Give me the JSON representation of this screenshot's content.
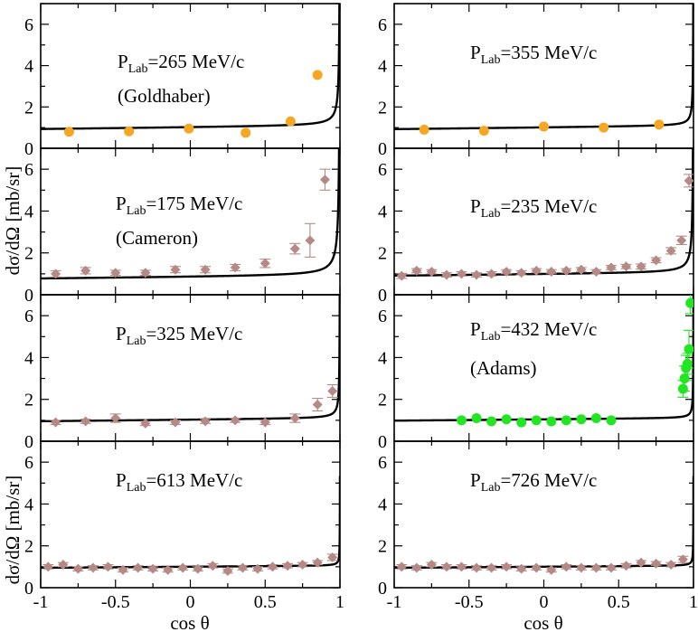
{
  "figure": {
    "ylabel": "dσ/dΩ [mb/sr]",
    "xlabel": "cos θ",
    "colors": {
      "orange": "#f5a623",
      "mauve": "#b58a86",
      "green": "#22e622",
      "curve": "#000000"
    }
  },
  "chart_data": [
    {
      "type": "scatter",
      "panel": "top-left",
      "annotation_main": "P",
      "annotation_sub": "Lab",
      "annotation_rest": "=265 MeV/c",
      "annotation_ref": "(Goldhaber)",
      "marker": "circle",
      "color": "orange",
      "xlim": [
        -1,
        1
      ],
      "ylim": [
        0,
        7
      ],
      "x": [
        -0.81,
        -0.41,
        -0.01,
        0.37,
        0.67,
        0.85
      ],
      "y": [
        0.8,
        0.82,
        0.95,
        0.75,
        1.3,
        3.55
      ],
      "err": [
        0,
        0,
        0,
        0,
        0,
        0
      ],
      "curve": {
        "a": 1.0,
        "b": 0.08,
        "c": 0.025
      }
    },
    {
      "type": "scatter",
      "panel": "top-right",
      "annotation_main": "P",
      "annotation_sub": "Lab",
      "annotation_rest": "=355 MeV/c",
      "annotation_ref": "",
      "marker": "circle",
      "color": "orange",
      "xlim": [
        -1,
        1
      ],
      "ylim": [
        0,
        7
      ],
      "x": [
        -0.8,
        -0.4,
        0.0,
        0.4,
        0.77
      ],
      "y": [
        0.9,
        0.85,
        1.05,
        1.0,
        1.15
      ],
      "err": [
        0,
        0,
        0,
        0,
        0
      ],
      "curve": {
        "a": 1.0,
        "b": 0.08,
        "c": 0.012
      }
    },
    {
      "type": "scatter",
      "panel": "middle1-left",
      "annotation_main": "P",
      "annotation_sub": "Lab",
      "annotation_rest": "=175 MeV/c",
      "annotation_ref": "(Cameron)",
      "marker": "diamond",
      "color": "mauve",
      "xlim": [
        -1,
        1
      ],
      "ylim": [
        0,
        7
      ],
      "x": [
        -0.9,
        -0.7,
        -0.5,
        -0.3,
        -0.1,
        0.1,
        0.3,
        0.5,
        0.7,
        0.8,
        0.9
      ],
      "y": [
        1.0,
        1.15,
        1.05,
        1.05,
        1.2,
        1.2,
        1.3,
        1.5,
        2.2,
        2.6,
        5.5
      ],
      "err": [
        0.15,
        0.15,
        0.12,
        0.12,
        0.15,
        0.15,
        0.15,
        0.2,
        0.25,
        0.8,
        0.5
      ],
      "curve": {
        "a": 0.83,
        "b": 0.07,
        "c": 0.04
      }
    },
    {
      "type": "scatter",
      "panel": "middle1-right",
      "annotation_main": "P",
      "annotation_sub": "Lab",
      "annotation_rest": "=235 MeV/c",
      "annotation_ref": "",
      "marker": "diamond",
      "color": "mauve",
      "xlim": [
        -1,
        1
      ],
      "ylim": [
        0,
        7
      ],
      "x": [
        -0.95,
        -0.85,
        -0.75,
        -0.65,
        -0.55,
        -0.45,
        -0.35,
        -0.25,
        -0.15,
        -0.05,
        0.05,
        0.15,
        0.25,
        0.35,
        0.45,
        0.55,
        0.65,
        0.75,
        0.85,
        0.92,
        0.97
      ],
      "y": [
        0.9,
        1.15,
        1.1,
        0.95,
        1.0,
        0.95,
        1.0,
        1.1,
        1.05,
        1.15,
        1.1,
        1.15,
        1.2,
        1.1,
        1.3,
        1.35,
        1.35,
        1.65,
        2.1,
        2.6,
        5.45
      ],
      "err": [
        0.12,
        0.1,
        0.1,
        0.1,
        0.1,
        0.1,
        0.1,
        0.1,
        0.1,
        0.1,
        0.1,
        0.1,
        0.1,
        0.1,
        0.1,
        0.1,
        0.12,
        0.12,
        0.15,
        0.2,
        0.3
      ],
      "curve": {
        "a": 0.97,
        "b": 0.07,
        "c": 0.025
      }
    },
    {
      "type": "scatter",
      "panel": "middle2-left",
      "annotation_main": "P",
      "annotation_sub": "Lab",
      "annotation_rest": "=325 MeV/c",
      "annotation_ref": "",
      "marker": "diamond",
      "color": "mauve",
      "xlim": [
        -1,
        1
      ],
      "ylim": [
        0,
        7
      ],
      "x": [
        -0.9,
        -0.7,
        -0.5,
        -0.3,
        -0.1,
        0.1,
        0.3,
        0.5,
        0.7,
        0.85,
        0.95
      ],
      "y": [
        0.9,
        0.95,
        1.1,
        0.85,
        0.9,
        0.95,
        1.0,
        0.9,
        1.1,
        1.75,
        2.4
      ],
      "err": [
        0.1,
        0.1,
        0.2,
        0.1,
        0.1,
        0.1,
        0.1,
        0.1,
        0.2,
        0.3,
        0.3
      ],
      "curve": {
        "a": 1.02,
        "b": 0.07,
        "c": 0.012
      }
    },
    {
      "type": "scatter",
      "panel": "middle2-right",
      "annotation_main": "P",
      "annotation_sub": "Lab",
      "annotation_rest": "=432 MeV/c",
      "annotation_ref": "(Adams)",
      "marker": "circle",
      "color": "green",
      "xlim": [
        -1,
        1
      ],
      "ylim": [
        0,
        7
      ],
      "x": [
        -0.55,
        -0.45,
        -0.35,
        -0.25,
        -0.15,
        -0.05,
        0.05,
        0.15,
        0.25,
        0.35,
        0.45,
        0.93,
        0.94,
        0.95,
        0.96,
        0.97,
        0.98
      ],
      "y": [
        1.0,
        1.1,
        0.95,
        1.05,
        0.9,
        1.0,
        0.95,
        1.0,
        1.05,
        1.1,
        1.0,
        2.5,
        3.0,
        3.5,
        3.7,
        4.4,
        6.6
      ],
      "err": [
        0,
        0,
        0,
        0,
        0,
        0,
        0,
        0,
        0,
        0,
        0,
        0.4,
        0.6,
        0.6,
        0.5,
        0.9,
        0.5
      ],
      "curve": {
        "a": 1.04,
        "b": 0.06,
        "c": 0.006
      }
    },
    {
      "type": "scatter",
      "panel": "bottom-left",
      "annotation_main": "P",
      "annotation_sub": "Lab",
      "annotation_rest": "=613 MeV/c",
      "annotation_ref": "",
      "marker": "diamond",
      "color": "mauve",
      "xlim": [
        -1,
        1
      ],
      "ylim": [
        0,
        7
      ],
      "x": [
        -0.95,
        -0.85,
        -0.75,
        -0.65,
        -0.55,
        -0.45,
        -0.35,
        -0.25,
        -0.15,
        -0.05,
        0.05,
        0.15,
        0.25,
        0.35,
        0.45,
        0.55,
        0.65,
        0.75,
        0.85,
        0.95
      ],
      "y": [
        1.0,
        1.1,
        0.9,
        0.95,
        1.0,
        0.85,
        0.95,
        0.9,
        0.85,
        0.95,
        0.9,
        1.05,
        0.8,
        0.95,
        0.9,
        1.0,
        1.05,
        1.1,
        1.2,
        1.45
      ],
      "err": [
        0.1,
        0.1,
        0.1,
        0.1,
        0.1,
        0.1,
        0.1,
        0.1,
        0.1,
        0.1,
        0.1,
        0.1,
        0.1,
        0.1,
        0.1,
        0.1,
        0.1,
        0.1,
        0.1,
        0.15
      ],
      "curve": {
        "a": 1.0,
        "b": 0.05,
        "c": 0.003
      }
    },
    {
      "type": "scatter",
      "panel": "bottom-right",
      "annotation_main": "P",
      "annotation_sub": "Lab",
      "annotation_rest": "=726 MeV/c",
      "annotation_ref": "",
      "marker": "diamond",
      "color": "mauve",
      "xlim": [
        -1,
        1
      ],
      "ylim": [
        0,
        7
      ],
      "x": [
        -0.95,
        -0.85,
        -0.75,
        -0.65,
        -0.55,
        -0.45,
        -0.35,
        -0.25,
        -0.15,
        -0.05,
        0.05,
        0.15,
        0.25,
        0.35,
        0.45,
        0.55,
        0.65,
        0.75,
        0.85,
        0.93
      ],
      "y": [
        1.0,
        0.95,
        1.1,
        1.0,
        1.0,
        0.95,
        0.95,
        1.0,
        0.9,
        0.95,
        0.85,
        1.0,
        0.95,
        0.95,
        0.95,
        1.05,
        1.2,
        1.15,
        1.1,
        1.35
      ],
      "err": [
        0.1,
        0.1,
        0.1,
        0.1,
        0.1,
        0.1,
        0.1,
        0.1,
        0.1,
        0.1,
        0.1,
        0.1,
        0.1,
        0.1,
        0.1,
        0.1,
        0.1,
        0.1,
        0.1,
        0.15
      ],
      "curve": {
        "a": 1.0,
        "b": 0.05,
        "c": 0.003
      }
    }
  ]
}
